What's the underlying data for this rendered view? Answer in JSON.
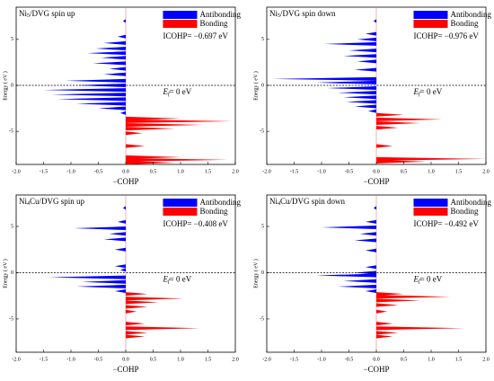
{
  "chart_data": [
    {
      "type": "area",
      "title": {
        "base": "Ni",
        "sub": "5",
        "rest": "/DVG  spin up"
      },
      "xlabel": "−COHP",
      "ylabel": "Energy ( eV )",
      "annotation": "ICOHP= −0.697 eV",
      "fermi_label": {
        "symbol": "E",
        "sub": "f",
        "rest": "= 0 eV"
      },
      "fermi_level": 0,
      "xlim": [
        -2,
        2
      ],
      "ylim": [
        -8.6,
        8.5
      ],
      "xticks": [
        {
          "value": -2,
          "label": "-2.0"
        },
        {
          "value": -1.5,
          "label": "-1.5"
        },
        {
          "value": -1,
          "label": "-1.0"
        },
        {
          "value": -0.5,
          "label": "-0.5"
        },
        {
          "value": 0,
          "label": "0.0"
        },
        {
          "value": 0.5,
          "label": "0.5"
        },
        {
          "value": 1,
          "label": "1.0"
        },
        {
          "value": 1.5,
          "label": "1.5"
        },
        {
          "value": 2,
          "label": "2.0"
        }
      ],
      "yticks": [
        5,
        0,
        -5
      ],
      "series": [
        {
          "name": "Antibonding",
          "color": "#0000ff",
          "energy": [
            7,
            5.3,
            4.6,
            4.0,
            3.5,
            3.0,
            2.4,
            1.8,
            1.2,
            0.5,
            0,
            -0.5,
            -1.0,
            -1.5,
            -2.0,
            -2.5,
            -3.0
          ],
          "values": [
            -0.05,
            -0.15,
            -0.4,
            -0.55,
            -0.7,
            -0.45,
            -0.6,
            -0.3,
            -0.4,
            -1.1,
            -0.9,
            -1.5,
            -1.35,
            -1.25,
            -0.9,
            -0.5,
            -0.1
          ]
        },
        {
          "name": "Bonding",
          "color": "#ff0000",
          "energy": [
            -3.6,
            -3.9,
            -4.3,
            -4.7,
            -5.2,
            -6.6,
            -7.8,
            -8.1,
            -8.4
          ],
          "values": [
            1.0,
            1.95,
            1.4,
            0.9,
            0.3,
            0.35,
            1.0,
            1.85,
            0.9
          ]
        }
      ]
    },
    {
      "type": "area",
      "title": {
        "base": "Ni",
        "sub": "5",
        "rest": "/DVG  spin down"
      },
      "xlabel": "−COHP",
      "ylabel": "Energy ( eV )",
      "annotation": "ICOHP= −0.976 eV",
      "fermi_label": {
        "symbol": "E",
        "sub": "f",
        "rest": "= 0 eV"
      },
      "fermi_level": 0,
      "xlim": [
        -2,
        2
      ],
      "ylim": [
        -8.6,
        8.5
      ],
      "xticks": [
        {
          "value": -2,
          "label": "-2.0"
        },
        {
          "value": -1.5,
          "label": "-1.5"
        },
        {
          "value": -1,
          "label": "-1.0"
        },
        {
          "value": -0.5,
          "label": "-0.5"
        },
        {
          "value": 0,
          "label": "0.0"
        },
        {
          "value": 0.5,
          "label": "0.5"
        },
        {
          "value": 1,
          "label": "1.0"
        },
        {
          "value": 1.5,
          "label": "1.5"
        },
        {
          "value": 2,
          "label": "2.0"
        }
      ],
      "yticks": [
        5,
        0,
        -5
      ],
      "series": [
        {
          "name": "Antibonding",
          "color": "#0000ff",
          "energy": [
            7,
            5.6,
            5.0,
            4.5,
            3.8,
            3.2,
            2.6,
            1.7,
            0.7,
            0.3,
            -0.3,
            -0.8,
            -1.3,
            -1.8,
            -2.3,
            -2.8
          ],
          "values": [
            -0.05,
            -0.2,
            -0.35,
            -0.95,
            -0.5,
            -0.6,
            -0.35,
            -0.4,
            -1.9,
            -1.1,
            -0.9,
            -0.7,
            -0.6,
            -0.55,
            -0.4,
            -0.15
          ]
        },
        {
          "name": "Bonding",
          "color": "#ff0000",
          "energy": [
            -3.2,
            -3.7,
            -4.1,
            -4.6,
            -6.6,
            -8.0,
            -8.3
          ],
          "values": [
            0.5,
            1.2,
            0.8,
            0.4,
            0.3,
            2.0,
            0.9
          ]
        }
      ]
    },
    {
      "type": "area",
      "title": {
        "base": "Ni",
        "sub": "4",
        "rest": "Cu/DVG   spin up"
      },
      "xlabel": "−COHP",
      "ylabel": "Energy ( eV )",
      "annotation": "ICOHP= −0.408 eV",
      "fermi_label": {
        "symbol": "E",
        "sub": "f",
        "rest": "= 0 eV"
      },
      "fermi_level": 0,
      "xlim": [
        -2,
        2
      ],
      "ylim": [
        -8.6,
        8.4
      ],
      "xticks": [
        {
          "value": -2,
          "label": "-2.0"
        },
        {
          "value": -1.5,
          "label": "-1.5"
        },
        {
          "value": -1,
          "label": "-1.0"
        },
        {
          "value": -0.5,
          "label": "-0.5"
        },
        {
          "value": 0,
          "label": "0.0"
        },
        {
          "value": 0.5,
          "label": "0.5"
        },
        {
          "value": 1,
          "label": "1.0"
        },
        {
          "value": 1.5,
          "label": "1.5"
        },
        {
          "value": 2,
          "label": "2.0"
        }
      ],
      "yticks": [
        5,
        0,
        -5
      ],
      "series": [
        {
          "name": "Antibonding",
          "color": "#0000ff",
          "energy": [
            7,
            5.5,
            4.8,
            4.2,
            3.6,
            2.5,
            0.7,
            0.3,
            -0.5,
            -1.0,
            -1.5,
            -2.0
          ],
          "values": [
            -0.05,
            -0.15,
            -0.95,
            -0.3,
            -0.4,
            -0.2,
            -0.2,
            -0.1,
            -1.4,
            -0.8,
            -0.9,
            -0.2
          ]
        },
        {
          "name": "Bonding",
          "color": "#ff0000",
          "energy": [
            -2.3,
            -2.8,
            -3.2,
            -3.7,
            -4.2,
            -5.5,
            -6.0,
            -6.5,
            -6.9
          ],
          "values": [
            0.4,
            1.05,
            0.6,
            0.4,
            0.2,
            0.35,
            1.35,
            0.4,
            0.35
          ]
        }
      ]
    },
    {
      "type": "area",
      "title": {
        "base": "Ni",
        "sub": "4",
        "rest": "Cu/DVG    spin down"
      },
      "xlabel": "−COHP",
      "ylabel": "Energy ( eV )",
      "annotation": "ICOHP= −0.492 eV",
      "fermi_label": {
        "symbol": "E",
        "sub": "f",
        "rest": "= 0 eV"
      },
      "fermi_level": 0,
      "xlim": [
        -2,
        2
      ],
      "ylim": [
        -8.6,
        8.4
      ],
      "xticks": [
        {
          "value": -2,
          "label": "-2.0"
        },
        {
          "value": -1.5,
          "label": "-1.5"
        },
        {
          "value": -1,
          "label": "-1.0"
        },
        {
          "value": -0.5,
          "label": "-0.5"
        },
        {
          "value": 0,
          "label": "0.0"
        },
        {
          "value": 0.5,
          "label": "0.5"
        },
        {
          "value": 1,
          "label": "1.0"
        },
        {
          "value": 1.5,
          "label": "1.5"
        },
        {
          "value": 2,
          "label": "2.0"
        }
      ],
      "yticks": [
        5,
        0,
        -5
      ],
      "series": [
        {
          "name": "Antibonding",
          "color": "#0000ff",
          "energy": [
            7,
            5.5,
            4.9,
            4.2,
            3.5,
            2.4,
            0.6,
            0.0,
            -0.3,
            -0.9,
            -1.5,
            -2.0
          ],
          "values": [
            -0.05,
            -0.2,
            -1.0,
            -0.3,
            -0.4,
            -0.2,
            -0.2,
            -0.4,
            -1.1,
            -0.6,
            -0.7,
            -0.2
          ]
        },
        {
          "name": "Bonding",
          "color": "#ff0000",
          "energy": [
            -2.3,
            -2.6,
            -3.0,
            -3.5,
            -4.2,
            -5.5,
            -6.0,
            -6.5,
            -6.9
          ],
          "values": [
            0.5,
            1.35,
            0.8,
            0.4,
            0.2,
            0.3,
            1.6,
            0.4,
            0.3
          ]
        }
      ]
    }
  ]
}
